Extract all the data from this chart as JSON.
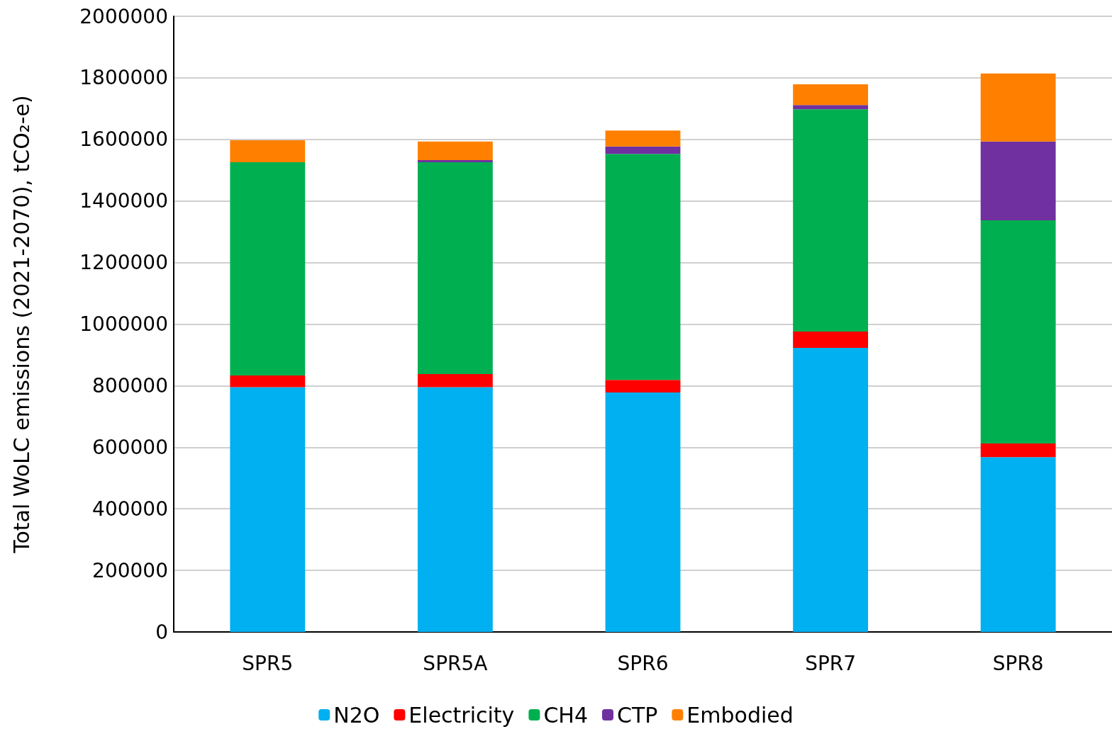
{
  "chart_data": {
    "type": "bar",
    "stacked": true,
    "ylabel": "Total WoLC emissions (2021-2070), tCO₂-e)",
    "categories": [
      "SPR5",
      "SPR5A",
      "SPR6",
      "SPR7",
      "SPR8"
    ],
    "series": [
      {
        "name": "N2O",
        "color": "#00b0f0",
        "values": [
          795000,
          795000,
          778000,
          923000,
          568000
        ]
      },
      {
        "name": "Electricity",
        "color": "#ff0000",
        "values": [
          38000,
          43000,
          41000,
          53000,
          44000
        ]
      },
      {
        "name": "CH4",
        "color": "#00b050",
        "values": [
          693000,
          688000,
          734000,
          722000,
          725000
        ]
      },
      {
        "name": "CTP",
        "color": "#7030a0",
        "values": [
          0,
          7000,
          24000,
          14000,
          256000
        ]
      },
      {
        "name": "Embodied",
        "color": "#ff8000",
        "values": [
          71000,
          60000,
          52000,
          67000,
          221000
        ]
      }
    ],
    "ylim": [
      0,
      2000000
    ],
    "yticks": [
      0,
      200000,
      400000,
      600000,
      800000,
      1000000,
      1200000,
      1400000,
      1600000,
      1800000,
      2000000
    ],
    "grid": "y",
    "legend": "bottom"
  }
}
